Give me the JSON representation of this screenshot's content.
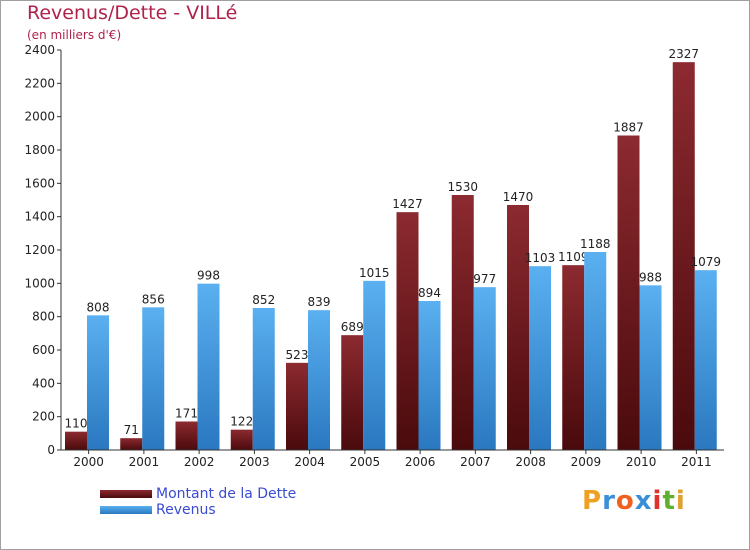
{
  "title": "Revenus/Dette - VILLé",
  "subtitle": "(en milliers d'€)",
  "logo": {
    "text": "Proxiti",
    "letters": [
      "P",
      "r",
      "o",
      "x",
      "i",
      "t",
      "i"
    ],
    "colors": [
      "#f0a020",
      "#3a8fd8",
      "#f06020",
      "#3a8fd8",
      "#e03030",
      "#60b030",
      "#e0a030"
    ]
  },
  "chart_data": {
    "type": "bar",
    "categories": [
      "2000",
      "2001",
      "2002",
      "2003",
      "2004",
      "2005",
      "2006",
      "2007",
      "2008",
      "2009",
      "2010",
      "2011"
    ],
    "series": [
      {
        "name": "Montant de la Dette",
        "color": "#7a1e22",
        "values": [
          110,
          71,
          171,
          122,
          523,
          689,
          1427,
          1530,
          1470,
          1109,
          1887,
          2327
        ]
      },
      {
        "name": "Revenus",
        "color": "#4aa3e8",
        "values": [
          808,
          856,
          998,
          852,
          839,
          1015,
          894,
          977,
          1103,
          1188,
          988,
          1079
        ]
      }
    ],
    "ylim": [
      0,
      2400
    ],
    "yticks": [
      "0",
      "200",
      "400",
      "600",
      "800",
      "1000",
      "1200",
      "1400",
      "1600",
      "1800",
      "2000",
      "2200",
      "2400"
    ],
    "grid": false,
    "legend": "bottom-left"
  }
}
